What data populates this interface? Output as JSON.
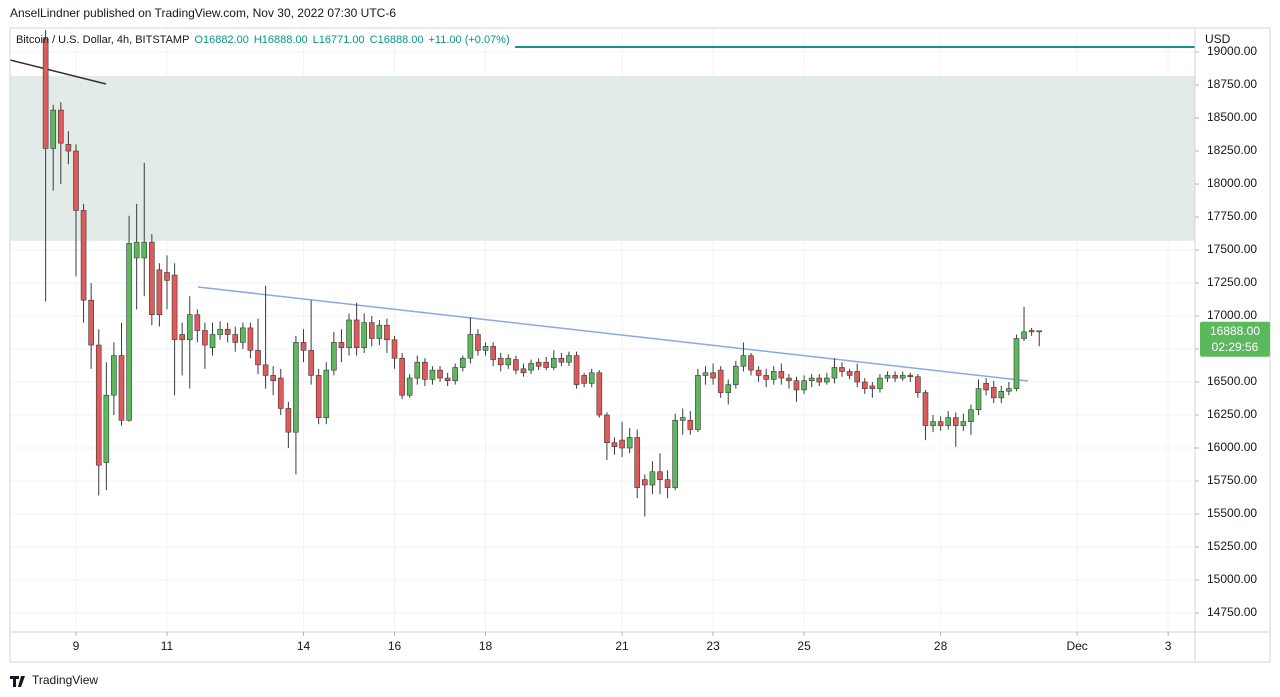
{
  "chart_data": {
    "type": "candlestick",
    "publisher": "AnselLindner published on TradingView.com, Nov 30, 2022 07:30 UTC-6",
    "title": "Bitcoin / U.S. Dollar, 4h, BITSTAMP",
    "ohlc_labels": [
      "O16882.00",
      "H16888.00",
      "L16771.00",
      "C16888.00",
      "+11.00 (+0.07%)"
    ],
    "y_axis_label": "USD",
    "price_label": "16888.00",
    "countdown": "02:29:56",
    "footer": "TradingView",
    "up_color": "#5cb85c",
    "down_color": "#e05a5a",
    "wick_color": "#3a3a3a",
    "xlim": [
      7.55,
      33.59
    ],
    "xticks": [
      9,
      11,
      14,
      16,
      18,
      21,
      23,
      25,
      28,
      {
        "value": 31,
        "label": "Dec"
      },
      {
        "value": 33,
        "label": "3"
      }
    ],
    "ylim": [
      14606,
      19167
    ],
    "yticks": [
      {
        "value": 14750,
        "label": "14750.00"
      },
      {
        "value": 15000,
        "label": "15000.00"
      },
      {
        "value": 15250,
        "label": "15250.00"
      },
      {
        "value": 15500,
        "label": "15500.00"
      },
      {
        "value": 15750,
        "label": "15750.00"
      },
      {
        "value": 16000,
        "label": "16000.00"
      },
      {
        "value": 16250,
        "label": "16250.00"
      },
      {
        "value": 16500,
        "label": "16500.00"
      },
      {
        "value": 16750,
        "label": "16750.00"
      },
      {
        "value": 17000,
        "label": "17000.00"
      },
      {
        "value": 17250,
        "label": "17250.00"
      },
      {
        "value": 17500,
        "label": "17500.00"
      },
      {
        "value": 17750,
        "label": "17750.00"
      },
      {
        "value": 18000,
        "label": "18000.00"
      },
      {
        "value": 18250,
        "label": "18250.00"
      },
      {
        "value": 18500,
        "label": "18500.00"
      },
      {
        "value": 18750,
        "label": "18750.00"
      },
      {
        "value": 19000,
        "label": "19000.00"
      }
    ],
    "grid": true,
    "zones": [
      {
        "from": 17570,
        "to": 18820,
        "color": "#e3ebe9"
      }
    ],
    "lines": [
      {
        "color": "#333333",
        "x": [
          7.55,
          9.66
        ],
        "y": [
          18940,
          18758
        ]
      },
      {
        "color": "#17948a",
        "x": [
          18.65,
          33.59
        ],
        "y": [
          19038,
          19038
        ]
      },
      {
        "color": "#8aa8e8",
        "x": [
          11.68,
          29.92
        ],
        "y": [
          17220,
          16508
        ]
      }
    ],
    "x": [
      8.333,
      8.5,
      8.667,
      8.833,
      9,
      9.167,
      9.333,
      9.5,
      9.667,
      9.833,
      10,
      10.167,
      10.333,
      10.5,
      10.667,
      10.833,
      11,
      11.167,
      11.333,
      11.5,
      11.667,
      11.833,
      12,
      12.167,
      12.333,
      12.5,
      12.667,
      12.833,
      13,
      13.167,
      13.333,
      13.5,
      13.667,
      13.833,
      14,
      14.167,
      14.333,
      14.5,
      14.667,
      14.833,
      15,
      15.167,
      15.333,
      15.5,
      15.667,
      15.833,
      16,
      16.167,
      16.333,
      16.5,
      16.667,
      16.833,
      17,
      17.167,
      17.333,
      17.5,
      17.667,
      17.833,
      18,
      18.167,
      18.333,
      18.5,
      18.667,
      18.833,
      19,
      19.167,
      19.333,
      19.5,
      19.667,
      19.833,
      20,
      20.167,
      20.333,
      20.5,
      20.667,
      20.833,
      21,
      21.167,
      21.333,
      21.5,
      21.667,
      21.833,
      22,
      22.167,
      22.333,
      22.5,
      22.667,
      22.833,
      23,
      23.167,
      23.333,
      23.5,
      23.667,
      23.833,
      24,
      24.167,
      24.333,
      24.5,
      24.667,
      24.833,
      25,
      25.167,
      25.333,
      25.5,
      25.667,
      25.833,
      26,
      26.167,
      26.333,
      26.5,
      26.667,
      26.833,
      27,
      27.167,
      27.333,
      27.5,
      27.667,
      27.833,
      28,
      28.167,
      28.333,
      28.5,
      28.667,
      28.833,
      29,
      29.167,
      29.333,
      29.5,
      29.667,
      29.833,
      30,
      30.167
    ],
    "open": [
      19100,
      18270,
      18560,
      18300,
      18250,
      17800,
      17120,
      16780,
      15890,
      16400,
      16700,
      16210,
      17440,
      17440,
      17560,
      17350,
      17330,
      17310,
      16860,
      16820,
      17010,
      16890,
      16760,
      16860,
      16900,
      16860,
      16800,
      16910,
      16740,
      16630,
      16550,
      16530,
      16300,
      16120,
      16800,
      16740,
      16550,
      16230,
      16590,
      16800,
      16760,
      16970,
      16760,
      16950,
      16830,
      16930,
      16820,
      16680,
      16400,
      16530,
      16650,
      16520,
      16590,
      16530,
      16510,
      16610,
      16680,
      16860,
      16740,
      16770,
      16680,
      16630,
      16670,
      16600,
      16590,
      16650,
      16650,
      16610,
      16680,
      16650,
      16700,
      16550,
      16490,
      16570,
      16250,
      16040,
      16060,
      16000,
      16080,
      15760,
      15720,
      15820,
      15760,
      15700,
      16210,
      16210,
      16140,
      16550,
      16570,
      16590,
      16420,
      16480,
      16620,
      16700,
      16590,
      16550,
      16520,
      16580,
      16530,
      16510,
      16440,
      16510,
      16530,
      16500,
      16530,
      16610,
      16580,
      16580,
      16500,
      16470,
      16450,
      16530,
      16550,
      16530,
      16550,
      16540,
      16420,
      16170,
      16200,
      16170,
      16230,
      16170,
      16200,
      16290,
      16490,
      16460,
      16380,
      16430,
      16450,
      16830,
      16890,
      16882
    ],
    "high": [
      19167,
      18600,
      18620,
      18400,
      18300,
      17850,
      17250,
      16900,
      16650,
      16800,
      16950,
      17760,
      17850,
      18160,
      17620,
      17400,
      17460,
      17400,
      16950,
      17150,
      17050,
      16950,
      16950,
      16960,
      16950,
      16920,
      16950,
      16950,
      16980,
      17230,
      16620,
      16600,
      16350,
      16850,
      16900,
      17120,
      16600,
      16650,
      16880,
      16900,
      17020,
      17100,
      17020,
      17000,
      16970,
      16980,
      16850,
      16720,
      16560,
      16700,
      16680,
      16620,
      16620,
      16570,
      16640,
      16700,
      16990,
      16900,
      16800,
      16800,
      16720,
      16710,
      16700,
      16640,
      16670,
      16680,
      16690,
      16740,
      16720,
      16730,
      16730,
      16570,
      16600,
      16590,
      16270,
      16080,
      16200,
      16150,
      16140,
      15800,
      15900,
      15960,
      15830,
      16260,
      16300,
      16280,
      16600,
      16620,
      16640,
      16620,
      16520,
      16660,
      16800,
      16720,
      16620,
      16600,
      16620,
      16640,
      16560,
      16540,
      16550,
      16560,
      16560,
      16570,
      16680,
      16650,
      16600,
      16640,
      16530,
      16500,
      16560,
      16580,
      16580,
      16580,
      16570,
      16560,
      16440,
      16250,
      16240,
      16280,
      16270,
      16260,
      16330,
      16520,
      16530,
      16510,
      16470,
      16500,
      16860,
      17070,
      16910,
      16888
    ],
    "low": [
      17110,
      17950,
      18000,
      18150,
      17300,
      16950,
      16600,
      15640,
      15680,
      16250,
      16170,
      16200,
      17050,
      17150,
      16930,
      16920,
      17050,
      16400,
      16550,
      16450,
      16800,
      16600,
      16700,
      16820,
      16800,
      16730,
      16750,
      16680,
      16560,
      16450,
      16400,
      16250,
      16000,
      15800,
      16650,
      16480,
      16180,
      16180,
      16550,
      16650,
      16700,
      16700,
      16720,
      16770,
      16780,
      16720,
      16600,
      16370,
      16380,
      16480,
      16470,
      16480,
      16500,
      16470,
      16480,
      16580,
      16640,
      16700,
      16700,
      16620,
      16580,
      16600,
      16560,
      16540,
      16560,
      16590,
      16590,
      16590,
      16620,
      16620,
      16450,
      16460,
      16460,
      16230,
      15910,
      15950,
      15930,
      15960,
      15620,
      15480,
      15650,
      15650,
      15620,
      15680,
      16100,
      16100,
      16120,
      16480,
      16480,
      16380,
      16330,
      16450,
      16580,
      16550,
      16500,
      16460,
      16480,
      16480,
      16450,
      16350,
      16410,
      16460,
      16470,
      16480,
      16490,
      16540,
      16520,
      16460,
      16410,
      16380,
      16420,
      16500,
      16500,
      16510,
      16500,
      16380,
      16060,
      16120,
      16130,
      16140,
      16010,
      16130,
      16100,
      16250,
      16400,
      16340,
      16340,
      16400,
      16430,
      16810,
      16850,
      16771
    ],
    "close": [
      18270,
      18560,
      18310,
      18250,
      17800,
      17120,
      16780,
      15870,
      16400,
      16700,
      16210,
      17550,
      17560,
      17560,
      17010,
      17010,
      17270,
      16820,
      16820,
      17010,
      16890,
      16780,
      16860,
      16900,
      16860,
      16800,
      16910,
      16740,
      16630,
      16550,
      16510,
      16300,
      16120,
      16800,
      16740,
      16550,
      16230,
      16590,
      16800,
      16760,
      16970,
      16760,
      16950,
      16830,
      16930,
      16820,
      16680,
      16400,
      16530,
      16650,
      16520,
      16590,
      16530,
      16510,
      16610,
      16680,
      16860,
      16740,
      16770,
      16670,
      16630,
      16680,
      16590,
      16570,
      16640,
      16620,
      16610,
      16680,
      16650,
      16700,
      16480,
      16490,
      16570,
      16250,
      16040,
      16010,
      16000,
      16080,
      15700,
      15720,
      15820,
      15760,
      15700,
      16210,
      16230,
      16140,
      16550,
      16570,
      16530,
      16420,
      16480,
      16620,
      16700,
      16590,
      16550,
      16520,
      16580,
      16530,
      16510,
      16440,
      16510,
      16530,
      16500,
      16530,
      16610,
      16580,
      16550,
      16500,
      16450,
      16450,
      16530,
      16550,
      16530,
      16550,
      16540,
      16420,
      16170,
      16200,
      16170,
      16230,
      16170,
      16200,
      16290,
      16450,
      16440,
      16380,
      16430,
      16450,
      16830,
      16880,
      16880,
      16888
    ]
  }
}
